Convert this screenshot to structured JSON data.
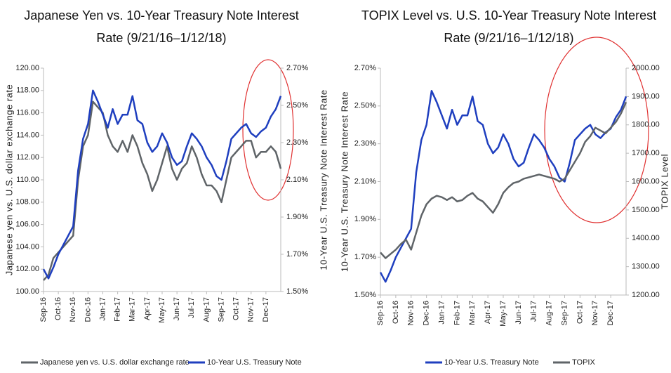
{
  "chart_data": [
    {
      "type": "line",
      "title": "Japanese Yen vs. 10-Year Treasury Note Interest Rate (9/21/16–1/12/18)",
      "y_label": "Japanese yen vs. U.S. dollar exchange rate",
      "y2_label": "10-Year U.S. Treasury Note Interest Rate",
      "categories": [
        "Sep-16",
        null,
        null,
        "Oct-16",
        null,
        null,
        "Nov-16",
        null,
        null,
        "Dec-16",
        null,
        null,
        "Jan-17",
        null,
        null,
        "Feb-17",
        null,
        null,
        "Mar-17",
        null,
        null,
        "Apr-17",
        null,
        null,
        "May-17",
        null,
        null,
        "Jun-17",
        null,
        null,
        "Jul-17",
        null,
        null,
        "Aug-17",
        null,
        null,
        "Sep-17",
        null,
        null,
        "Oct-17",
        null,
        null,
        "Nov-17",
        null,
        null,
        "Dec-17",
        null,
        null,
        null
      ],
      "series": [
        {
          "name": "Japanese yen vs. U.S. dollar exchange rate",
          "color": "#5f6468",
          "values": [
            101,
            101.5,
            103,
            103.5,
            104,
            104.5,
            105,
            110,
            113,
            114,
            117,
            116.5,
            116,
            114,
            113,
            112.5,
            113.5,
            112.5,
            114,
            113,
            111.5,
            110.5,
            109,
            110,
            111.5,
            113,
            111,
            110,
            111,
            111.5,
            113,
            112,
            110.5,
            109.5,
            109.5,
            109,
            108,
            110,
            112,
            112.5,
            113,
            113.5,
            113.5,
            112,
            112.5,
            112.5,
            113,
            112.5,
            111
          ]
        },
        {
          "name": "10-Year U.S. Treasury Note",
          "color": "#1f3fbf",
          "axis": "y2",
          "values": [
            1.62,
            1.57,
            1.63,
            1.7,
            1.75,
            1.8,
            1.85,
            2.15,
            2.32,
            2.4,
            2.58,
            2.52,
            2.45,
            2.38,
            2.48,
            2.4,
            2.45,
            2.45,
            2.55,
            2.42,
            2.4,
            2.3,
            2.25,
            2.28,
            2.35,
            2.3,
            2.22,
            2.18,
            2.2,
            2.28,
            2.35,
            2.32,
            2.28,
            2.22,
            2.18,
            2.12,
            2.1,
            2.2,
            2.32,
            2.35,
            2.38,
            2.4,
            2.35,
            2.33,
            2.36,
            2.38,
            2.44,
            2.48,
            2.55
          ]
        }
      ],
      "ylim": [
        100,
        120
      ],
      "yticks": [
        {
          "value": 100,
          "label": "100.00"
        },
        {
          "value": 102,
          "label": "102.00"
        },
        {
          "value": 104,
          "label": "104.00"
        },
        {
          "value": 106,
          "label": "106.00"
        },
        {
          "value": 108,
          "label": "108.00"
        },
        {
          "value": 110,
          "label": "110.00"
        },
        {
          "value": 112,
          "label": "112.00"
        },
        {
          "value": 114,
          "label": "114.00"
        },
        {
          "value": 116,
          "label": "116.00"
        },
        {
          "value": 118,
          "label": "118.00"
        },
        {
          "value": 120,
          "label": "120.00"
        }
      ],
      "y2lim": [
        1.5,
        2.7
      ],
      "y2ticks": [
        {
          "value": 1.5,
          "label": "1.50%"
        },
        {
          "value": 1.7,
          "label": "1.70%"
        },
        {
          "value": 1.9,
          "label": "1.90%"
        },
        {
          "value": 2.1,
          "label": "2.10%"
        },
        {
          "value": 2.3,
          "label": "2.30%"
        },
        {
          "value": 2.5,
          "label": "2.50%"
        },
        {
          "value": 2.7,
          "label": "2.70%"
        }
      ],
      "legend": "bottom"
    },
    {
      "type": "line",
      "title": "TOPIX Level vs. U.S. 10-Year Treasury Note Interest Rate (9/21/16–1/12/18)",
      "y_label": "10-Year U.S. Treasury Note Interest Rate",
      "y2_label": "TOPIX Level",
      "categories": [
        "Sep-16",
        null,
        null,
        "Oct-16",
        null,
        null,
        "Nov-16",
        null,
        null,
        "Dec-16",
        null,
        null,
        "Jan-17",
        null,
        null,
        "Feb-17",
        null,
        null,
        "Mar-17",
        null,
        null,
        "Apr-17",
        null,
        null,
        "May-17",
        null,
        null,
        "Jun-17",
        null,
        null,
        "Jul-17",
        null,
        null,
        "Aug-17",
        null,
        null,
        "Sep-17",
        null,
        null,
        "Oct-17",
        null,
        null,
        "Nov-17",
        null,
        null,
        "Dec-17",
        null,
        null,
        null
      ],
      "series": [
        {
          "name": "10-Year U.S. Treasury Note",
          "color": "#1f3fbf",
          "values": [
            1.62,
            1.57,
            1.63,
            1.7,
            1.75,
            1.8,
            1.85,
            2.15,
            2.32,
            2.4,
            2.58,
            2.52,
            2.45,
            2.38,
            2.48,
            2.4,
            2.45,
            2.45,
            2.55,
            2.42,
            2.4,
            2.3,
            2.25,
            2.28,
            2.35,
            2.3,
            2.22,
            2.18,
            2.2,
            2.28,
            2.35,
            2.32,
            2.28,
            2.22,
            2.18,
            2.12,
            2.1,
            2.2,
            2.32,
            2.35,
            2.38,
            2.4,
            2.35,
            2.33,
            2.36,
            2.38,
            2.44,
            2.48,
            2.55
          ]
        },
        {
          "name": "TOPIX",
          "color": "#5f6468",
          "axis": "y2",
          "values": [
            1350,
            1330,
            1345,
            1360,
            1380,
            1395,
            1360,
            1420,
            1480,
            1520,
            1540,
            1550,
            1545,
            1535,
            1545,
            1530,
            1535,
            1550,
            1560,
            1540,
            1530,
            1510,
            1490,
            1520,
            1560,
            1580,
            1595,
            1600,
            1610,
            1615,
            1620,
            1625,
            1620,
            1615,
            1610,
            1600,
            1610,
            1640,
            1670,
            1700,
            1740,
            1760,
            1790,
            1780,
            1770,
            1790,
            1810,
            1840,
            1880
          ]
        }
      ],
      "ylim": [
        1.5,
        2.7
      ],
      "yticks": [
        {
          "value": 1.5,
          "label": "1.50%"
        },
        {
          "value": 1.7,
          "label": "1.70%"
        },
        {
          "value": 1.9,
          "label": "1.90%"
        },
        {
          "value": 2.1,
          "label": "2.10%"
        },
        {
          "value": 2.3,
          "label": "2.30%"
        },
        {
          "value": 2.5,
          "label": "2.50%"
        },
        {
          "value": 2.7,
          "label": "2.70%"
        }
      ],
      "y2lim": [
        1200,
        2000
      ],
      "y2ticks": [
        {
          "value": 1200,
          "label": "1200.00"
        },
        {
          "value": 1300,
          "label": "1300.00"
        },
        {
          "value": 1400,
          "label": "1400.00"
        },
        {
          "value": 1500,
          "label": "1500.00"
        },
        {
          "value": 1600,
          "label": "1600.00"
        },
        {
          "value": 1700,
          "label": "1700.00"
        },
        {
          "value": 1800,
          "label": "1800.00"
        },
        {
          "value": 1900,
          "label": "1900.00"
        },
        {
          "value": 2000,
          "label": "2000.00"
        }
      ],
      "legend": "bottom"
    }
  ]
}
